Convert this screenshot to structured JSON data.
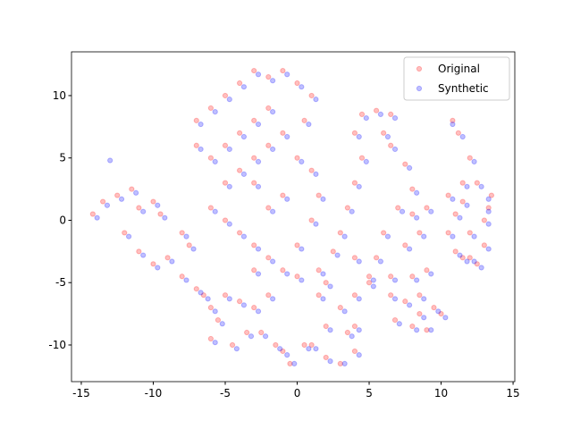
{
  "chart_data": {
    "type": "scatter",
    "xlim": [
      -15.68,
      15.12
    ],
    "ylim": [
      -12.94,
      13.51
    ],
    "xticks": [
      -15,
      -10,
      -5,
      0,
      5,
      10,
      15
    ],
    "yticks": [
      -10,
      -5,
      0,
      5,
      10
    ],
    "grid": false,
    "legend": "upper right",
    "series": [
      {
        "name": "Original",
        "color": "#ff0000",
        "alpha": 0.25,
        "x": [
          -14.2,
          -13.5,
          -12.5,
          -11.5,
          -11,
          -12,
          -11,
          -10,
          -9,
          -8,
          -7,
          -6.5,
          -7.5,
          -8,
          -9.5,
          -10,
          -7,
          -6,
          -5,
          -4,
          -3,
          -2,
          -1,
          0,
          1,
          0.5,
          -1,
          -2,
          -3,
          -4,
          -5,
          -6,
          -7,
          -6,
          -5,
          -4,
          -3,
          -2,
          -1,
          0,
          1,
          1.5,
          1,
          0,
          -1,
          -2,
          -3,
          -4,
          -5,
          -2,
          -3,
          0,
          -3,
          -6,
          -5,
          -4,
          -3,
          -3.5,
          -4.5,
          -6,
          -5.5,
          -2,
          -2.5,
          -1.5,
          -0.5,
          0.5,
          -1,
          1,
          2,
          3,
          4,
          3.5,
          2,
          1.5,
          1.5,
          2.5,
          3,
          3.5,
          4,
          4.5,
          4,
          4.5,
          5.5,
          6.5,
          6,
          4,
          5,
          4,
          3,
          2,
          5,
          4,
          6.5,
          7.5,
          8,
          7,
          6,
          5.5,
          6.5,
          6.5,
          6.8,
          7.5,
          8,
          7.5,
          8.5,
          9,
          8,
          9,
          8.5,
          8,
          9,
          10,
          9.5,
          8.5,
          10.8,
          11.2,
          12,
          12.5,
          13.5,
          13,
          12,
          13,
          12,
          11,
          10.5,
          11,
          10.5,
          11.5,
          12.5,
          11.5,
          13.3,
          11.5
        ],
        "values": [
          0.5,
          1.5,
          2,
          2.5,
          1,
          -1,
          -2.5,
          -3.5,
          -3,
          -4.5,
          -5.5,
          -6,
          -2,
          -1,
          0.5,
          1.5,
          8,
          9,
          10,
          11,
          12,
          11.5,
          12,
          11,
          10,
          8,
          7,
          6,
          5,
          4,
          3,
          5,
          6,
          1,
          0,
          -1,
          -2,
          -3,
          -4,
          -2,
          0,
          2,
          4,
          5,
          2,
          1,
          3,
          7,
          6,
          9,
          8,
          -4.5,
          -4,
          -7,
          -6,
          -6.5,
          -7,
          -9,
          -10,
          -9.5,
          -8,
          -6,
          -9,
          -10,
          -11.5,
          -10,
          -10.5,
          -10,
          -11,
          -11.5,
          -10.5,
          -9,
          -8.5,
          -6,
          -4,
          -2.5,
          -1,
          1,
          3,
          5,
          7,
          8.5,
          8.8,
          8.5,
          7,
          -3,
          -5,
          -6,
          -7,
          -5,
          -4.5,
          -8.5,
          6,
          4.5,
          2.5,
          1,
          -1,
          -3,
          -4.5,
          -6,
          -8,
          -6.5,
          -4.5,
          -2,
          -1,
          1,
          0.5,
          -4,
          -6,
          -8.5,
          -8.8,
          -7.5,
          -7,
          -7.5,
          8,
          7,
          5,
          3,
          2,
          0,
          -1,
          -2,
          -3,
          -2.5,
          -1,
          0.5,
          2,
          3,
          -3.5,
          -3,
          1,
          1.5
        ]
      },
      {
        "name": "Synthetic",
        "color": "#0000ff",
        "alpha": 0.25,
        "x": [
          -13.9,
          -13.2,
          -12.2,
          -11.2,
          -10.7,
          -11.7,
          -10.7,
          -9.7,
          -8.7,
          -7.7,
          -6.7,
          -6.2,
          -7.2,
          -7.7,
          -9.2,
          -9.7,
          -6.7,
          -5.7,
          -4.7,
          -3.7,
          -2.7,
          -1.7,
          -0.7,
          0.3,
          1.3,
          0.8,
          -0.7,
          -1.7,
          -2.7,
          -3.7,
          -4.7,
          -5.7,
          -6.7,
          -5.7,
          -4.7,
          -3.7,
          -2.7,
          -1.7,
          -0.7,
          0.3,
          1.3,
          1.8,
          1.3,
          0.3,
          -0.7,
          -1.7,
          -2.7,
          -3.7,
          -4.7,
          -1.7,
          -2.7,
          0.3,
          -2.7,
          -5.7,
          -4.7,
          -3.7,
          -2.7,
          -3.2,
          -4.2,
          -5.7,
          -5.2,
          -1.7,
          -2.2,
          -1.2,
          -0.2,
          0.8,
          -0.7,
          1.3,
          2.3,
          3.3,
          4.3,
          3.8,
          2.3,
          1.8,
          1.8,
          2.8,
          3.3,
          3.8,
          4.3,
          4.8,
          4.3,
          4.8,
          5.8,
          6.8,
          6.3,
          4.3,
          5.3,
          4.3,
          3.3,
          2.3,
          5.3,
          4.3,
          6.8,
          7.8,
          8.3,
          7.3,
          6.3,
          5.8,
          6.8,
          6.8,
          7.1,
          7.8,
          8.3,
          7.8,
          8.8,
          9.3,
          8.3,
          9.3,
          8.8,
          8.3,
          9.3,
          10.3,
          9.8,
          8.8,
          10.8,
          11.5,
          12.3,
          12.8,
          13.3,
          13.3,
          12.3,
          13.3,
          12.3,
          11.3,
          10.8,
          11.3,
          10.8,
          11.8,
          12.8,
          11.8,
          13.3,
          11.8,
          -13
        ],
        "values": [
          0.2,
          1.2,
          1.7,
          2.2,
          0.7,
          -1.3,
          -2.8,
          -3.8,
          -3.3,
          -4.8,
          -5.8,
          -6.3,
          -2.3,
          -1.3,
          0.2,
          1.2,
          7.7,
          8.7,
          9.7,
          10.7,
          11.7,
          11.2,
          11.7,
          10.7,
          9.7,
          7.7,
          6.7,
          5.7,
          4.7,
          3.7,
          2.7,
          4.7,
          5.7,
          0.7,
          -0.3,
          -1.3,
          -2.3,
          -3.3,
          -4.3,
          -2.3,
          -0.3,
          1.7,
          3.7,
          4.7,
          1.7,
          0.7,
          2.7,
          6.7,
          5.7,
          8.7,
          7.7,
          -4.8,
          -4.3,
          -7.3,
          -6.3,
          -6.8,
          -7.3,
          -9.3,
          -10.3,
          -9.8,
          -8.3,
          -6.3,
          -9.3,
          -10.3,
          -11.5,
          -10.3,
          -10.8,
          -10.3,
          -11.3,
          -11.5,
          -10.8,
          -9.3,
          -8.8,
          -6.3,
          -4.3,
          -2.8,
          -1.3,
          0.7,
          2.7,
          4.7,
          6.7,
          8.2,
          8.5,
          8.2,
          6.7,
          -3.3,
          -5.3,
          -6.3,
          -7.3,
          -5.3,
          -4.8,
          -8.8,
          5.7,
          4.2,
          2.2,
          0.7,
          -1.3,
          -3.3,
          -4.8,
          -6.3,
          -8.3,
          -6.8,
          -4.8,
          -2.3,
          -1.3,
          0.7,
          0.2,
          -4.3,
          -6.3,
          -8.8,
          -8.8,
          -7.8,
          -7.3,
          -7.8,
          7.7,
          6.7,
          4.7,
          2.7,
          1.7,
          -0.3,
          -1.3,
          -2.3,
          -3.3,
          -2.8,
          -1.3,
          0.2,
          1.7,
          2.7,
          -3.8,
          -3.3,
          0.7,
          1.2,
          4.8
        ]
      }
    ]
  }
}
